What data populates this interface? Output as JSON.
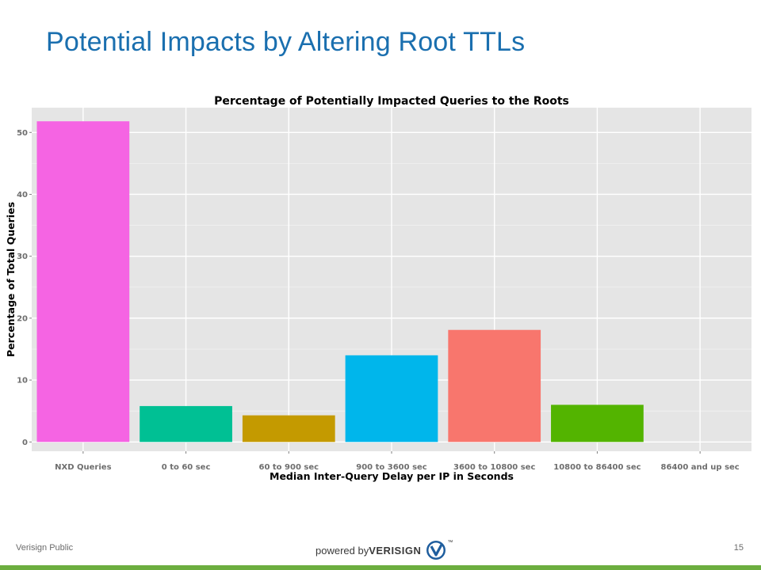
{
  "slide": {
    "title": "Potential Impacts by Altering Root TTLs",
    "footer_left": "Verisign Public",
    "page_number": "15",
    "brand_prefix": "powered by ",
    "brand_name": "VERISIGN",
    "brand_tm": "™"
  },
  "chart_data": {
    "type": "bar",
    "title": "Percentage of Potentially Impacted Queries to the Roots",
    "xlabel": "Median Inter-Query Delay per IP in Seconds",
    "ylabel": "Percentage of Total Queries",
    "categories": [
      "NXD Queries",
      "0 to 60 sec",
      "60 to 900 sec",
      "900 to 3600 sec",
      "3600 to 10800 sec",
      "10800 to 86400 sec",
      "86400 and up sec"
    ],
    "values": [
      51.8,
      5.8,
      4.3,
      14.0,
      18.1,
      6.0,
      0
    ],
    "colors": [
      "#f564e3",
      "#00c094",
      "#c49a00",
      "#00b6eb",
      "#f8766d",
      "#53b400",
      "#a58aff"
    ],
    "yticks": [
      0,
      10,
      20,
      30,
      40,
      50
    ],
    "ylim": [
      -1.5,
      54
    ],
    "grid": true,
    "legend": "none",
    "background": "#e5e5e5"
  }
}
